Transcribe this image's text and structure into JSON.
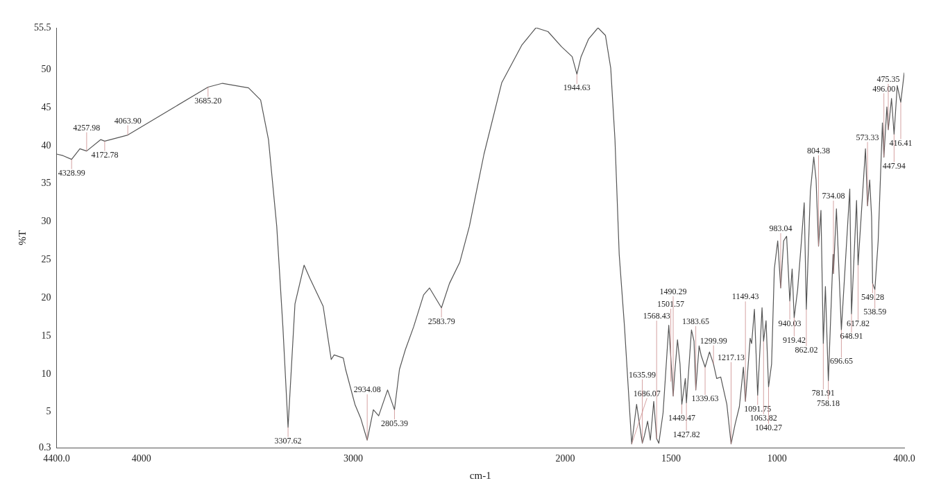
{
  "chart_data": {
    "type": "line",
    "xlabel": "cm-1",
    "ylabel": "%T",
    "xlim": [
      4400,
      400
    ],
    "ylim": [
      0.3,
      55.5
    ],
    "xticks": [
      {
        "value": 4400,
        "label": "4400.0"
      },
      4000,
      3000,
      2000,
      1500,
      1000,
      {
        "value": 400,
        "label": "400.0"
      }
    ],
    "yticks": [
      0.3,
      5,
      10,
      15,
      20,
      25,
      30,
      35,
      40,
      45,
      50,
      55.5
    ],
    "grid": false,
    "legend": false,
    "marker": "none",
    "line_style": "solid",
    "series": [
      {
        "color": "#555555",
        "x": [
          4400,
          4370,
          4328.99,
          4290,
          4257.98,
          4192,
          4172.78,
          4063.9,
          3854,
          3685.2,
          3617,
          3494,
          3437,
          3400,
          3361,
          3332,
          3307.62,
          3275,
          3232,
          3205,
          3142,
          3104,
          3090,
          3047,
          3036,
          2992,
          2965,
          2934.08,
          2905,
          2880,
          2838,
          2805.39,
          2782,
          2754,
          2715,
          2668,
          2640,
          2583.79,
          2546,
          2497,
          2452,
          2383,
          2299,
          2205,
          2138,
          2081,
          2017,
          1967,
          1944.63,
          1925,
          1890,
          1845,
          1810,
          1785,
          1765,
          1745,
          1720,
          1686.07,
          1663,
          1635.99,
          1626,
          1611,
          1598,
          1582,
          1568.43,
          1558,
          1538,
          1511,
          1490.29,
          1485,
          1470,
          1458,
          1449.47,
          1433,
          1427.82,
          1404,
          1392,
          1383.65,
          1368,
          1358,
          1339.63,
          1319,
          1299.99,
          1285,
          1266,
          1237,
          1217.13,
          1198,
          1178,
          1159,
          1149.43,
          1127,
          1120,
          1107,
          1091.75,
          1071,
          1063.82,
          1052,
          1040.27,
          1026,
          1013,
          997,
          983.04,
          969,
          955,
          940.03,
          929,
          919.42,
          903,
          887,
          872,
          862.02,
          843,
          827,
          816,
          804.38,
          793,
          781.91,
          772,
          758.18,
          736,
          734.08,
          720,
          696.65,
          657,
          648.91,
          625,
          617.82,
          583,
          573.33,
          563,
          554,
          549.28,
          538.59,
          523,
          503,
          496,
          482,
          475.35,
          460,
          447.94,
          433,
          416.41,
          400
        ],
        "values": [
          38.9,
          38.7,
          38.2,
          39.6,
          39.3,
          40.8,
          40.6,
          41.4,
          44.9,
          47.7,
          48.2,
          47.6,
          46.0,
          40.8,
          29.4,
          16.2,
          3.0,
          19.2,
          24.3,
          22.6,
          18.9,
          11.9,
          12.5,
          12.1,
          10.6,
          6.0,
          4.2,
          1.3,
          5.3,
          4.5,
          7.9,
          5.3,
          10.6,
          13.2,
          16.2,
          20.4,
          21.3,
          18.7,
          21.9,
          24.7,
          29.4,
          38.9,
          48.3,
          53.2,
          55.5,
          55.0,
          53.0,
          51.7,
          49.4,
          51.7,
          54.0,
          55.5,
          54.5,
          50.2,
          40.8,
          25.7,
          16.2,
          0.8,
          6.0,
          0.9,
          1.9,
          3.8,
          1.3,
          6.4,
          1.5,
          0.9,
          4.9,
          16.4,
          7.1,
          9.4,
          14.5,
          11.3,
          6.0,
          9.4,
          6.2,
          15.8,
          14.3,
          7.9,
          13.7,
          12.4,
          10.9,
          12.9,
          11.3,
          9.4,
          9.6,
          6.0,
          0.8,
          3.4,
          5.7,
          10.9,
          6.4,
          14.7,
          14.0,
          18.5,
          7.2,
          18.7,
          14.3,
          17.0,
          8.3,
          11.3,
          23.8,
          27.5,
          21.3,
          27.5,
          28.1,
          19.6,
          23.8,
          17.4,
          21.1,
          26.8,
          32.5,
          18.5,
          34.0,
          38.5,
          35.5,
          26.8,
          31.5,
          14.0,
          21.5,
          9.1,
          25.7,
          23.2,
          31.7,
          15.8,
          34.3,
          17.9,
          32.8,
          24.3,
          39.6,
          32.1,
          35.5,
          30.6,
          21.9,
          21.1,
          27.5,
          43.0,
          38.5,
          45.1,
          42.1,
          46.2,
          41.5,
          47.9,
          45.7,
          49.6
        ]
      }
    ],
    "annotations": [
      {
        "text": "4328.99",
        "x": 4328.99,
        "y": 38.2
      },
      {
        "text": "4257.98",
        "x": 4257.98,
        "y": 39.3
      },
      {
        "text": "4172.78",
        "x": 4172.78,
        "y": 40.6
      },
      {
        "text": "4063.90",
        "x": 4063.9,
        "y": 41.4
      },
      {
        "text": "3685.20",
        "x": 3685.2,
        "y": 47.7
      },
      {
        "text": "3307.62",
        "x": 3307.62,
        "y": 3.0
      },
      {
        "text": "2934.08",
        "x": 2934.08,
        "y": 1.3
      },
      {
        "text": "2805.39",
        "x": 2805.39,
        "y": 5.3
      },
      {
        "text": "2583.79",
        "x": 2583.79,
        "y": 18.7
      },
      {
        "text": "1944.63",
        "x": 1944.63,
        "y": 49.4
      },
      {
        "text": "1686.07",
        "x": 1686.07,
        "y": 0.8
      },
      {
        "text": "1635.99",
        "x": 1635.99,
        "y": 0.9
      },
      {
        "text": "1568.43",
        "x": 1568.43,
        "y": 1.5
      },
      {
        "text": "1501.57",
        "x": 1501.57,
        "y": 9.0
      },
      {
        "text": "1490.29",
        "x": 1490.29,
        "y": 7.1
      },
      {
        "text": "1449.47",
        "x": 1449.47,
        "y": 6.0
      },
      {
        "text": "1427.82",
        "x": 1427.82,
        "y": 6.2
      },
      {
        "text": "1383.65",
        "x": 1383.65,
        "y": 7.9
      },
      {
        "text": "1339.63",
        "x": 1339.63,
        "y": 10.9
      },
      {
        "text": "1299.99",
        "x": 1299.99,
        "y": 11.3
      },
      {
        "text": "1217.13",
        "x": 1217.13,
        "y": 0.8
      },
      {
        "text": "1149.43",
        "x": 1149.43,
        "y": 6.4
      },
      {
        "text": "1091.75",
        "x": 1091.75,
        "y": 7.2
      },
      {
        "text": "1063.82",
        "x": 1063.82,
        "y": 14.3
      },
      {
        "text": "1040.27",
        "x": 1040.27,
        "y": 8.3
      },
      {
        "text": "983.04",
        "x": 983.04,
        "y": 21.3
      },
      {
        "text": "940.03",
        "x": 940.03,
        "y": 19.6
      },
      {
        "text": "919.42",
        "x": 919.42,
        "y": 17.4
      },
      {
        "text": "862.02",
        "x": 862.02,
        "y": 18.5
      },
      {
        "text": "804.38",
        "x": 804.38,
        "y": 26.8
      },
      {
        "text": "781.91",
        "x": 781.91,
        "y": 14.0
      },
      {
        "text": "758.18",
        "x": 758.18,
        "y": 9.1
      },
      {
        "text": "734.08",
        "x": 734.08,
        "y": 23.2
      },
      {
        "text": "696.65",
        "x": 696.65,
        "y": 15.8
      },
      {
        "text": "648.91",
        "x": 648.91,
        "y": 17.9
      },
      {
        "text": "617.82",
        "x": 617.82,
        "y": 24.3
      },
      {
        "text": "573.33",
        "x": 573.33,
        "y": 32.1
      },
      {
        "text": "549.28",
        "x": 549.28,
        "y": 21.9
      },
      {
        "text": "538.59",
        "x": 538.59,
        "y": 21.1
      },
      {
        "text": "496.00",
        "x": 496,
        "y": 38.5
      },
      {
        "text": "475.35",
        "x": 475.35,
        "y": 42.1
      },
      {
        "text": "447.94",
        "x": 447.94,
        "y": 41.5
      },
      {
        "text": "416.41",
        "x": 416.41,
        "y": 45.7
      }
    ]
  }
}
